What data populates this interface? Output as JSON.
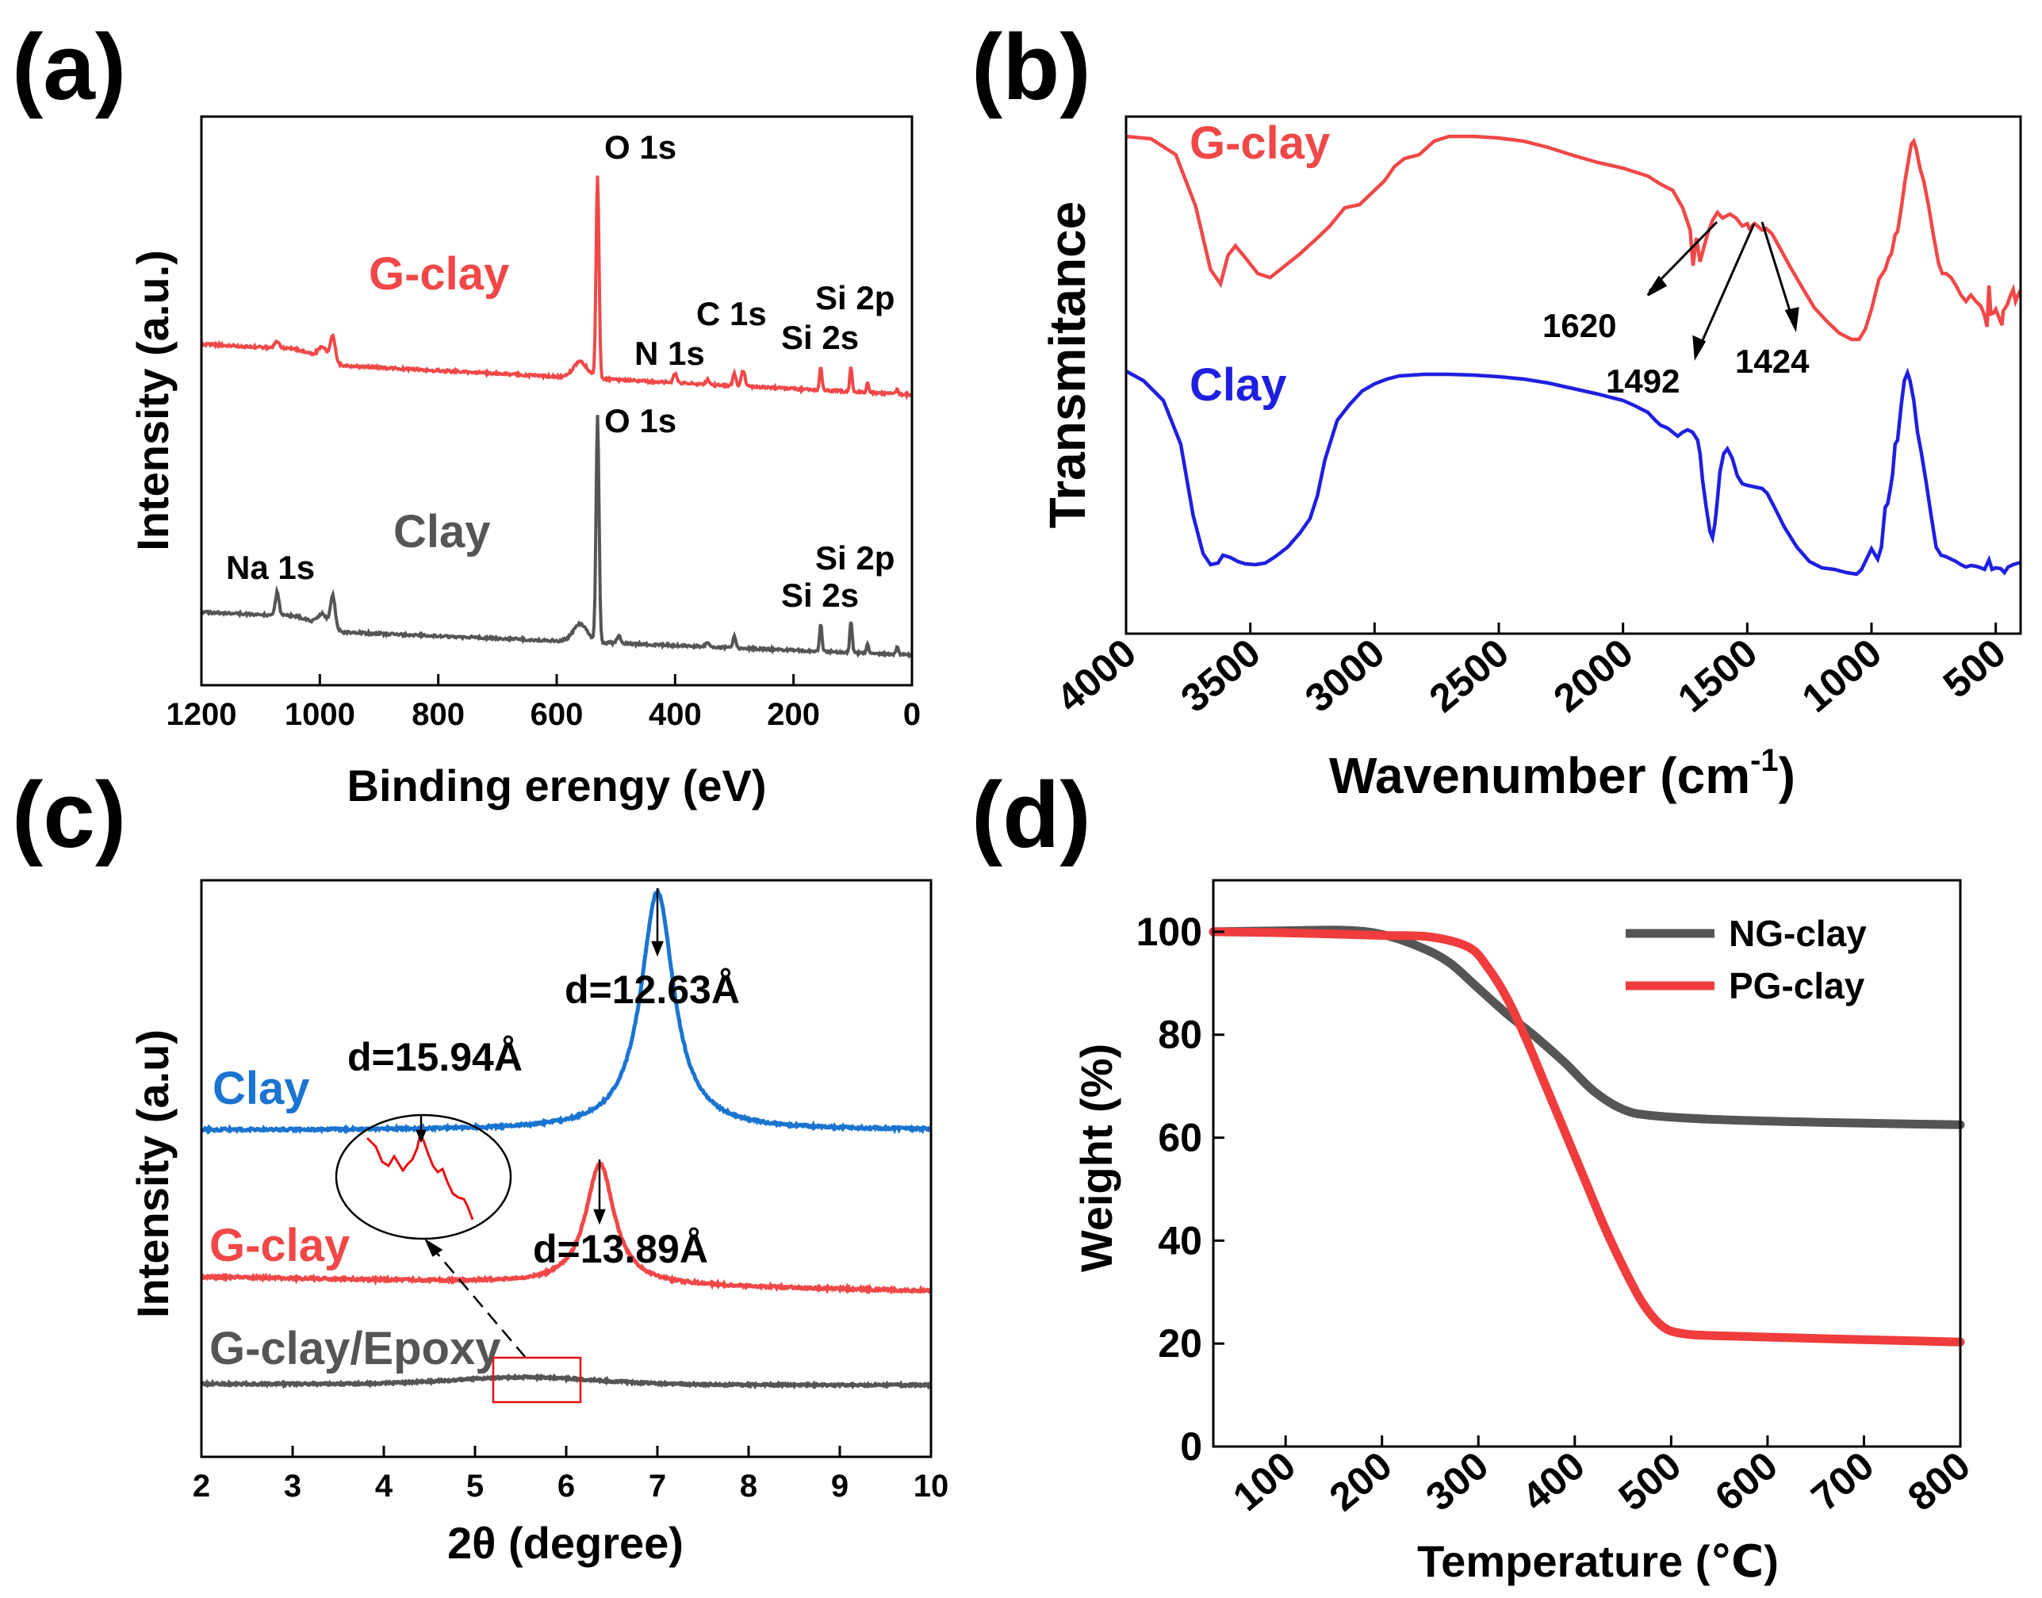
{
  "figure": {
    "label_a": "(a)",
    "label_b": "(b)",
    "label_c": "(c)",
    "label_d": "(d)"
  },
  "chart_data": [
    {
      "id": "a",
      "type": "line",
      "title": "",
      "xlabel": "Binding erengy (eV)",
      "ylabel": "Intensity (a.u.)",
      "xlim": [
        1200,
        0
      ],
      "xreversed": true,
      "xticks": [
        1200,
        1000,
        800,
        600,
        400,
        200,
        0
      ],
      "yunits": "arbitrary (stacked)",
      "series": [
        {
          "name": "G-clay",
          "color": "#f04848",
          "label": "G-clay",
          "peaks": [
            {
              "x": 1072,
              "label": ""
            },
            {
              "x": 978,
              "label": ""
            },
            {
              "x": 531,
              "label": "O 1s"
            },
            {
              "x": 400,
              "label": "N 1s"
            },
            {
              "x": 285,
              "label": "C 1s"
            },
            {
              "x": 154,
              "label": "Si 2s"
            },
            {
              "x": 103,
              "label": "Si 2p"
            }
          ],
          "annotations": [
            "O 1s",
            "N 1s",
            "C 1s",
            "Si 2s",
            "Si 2p"
          ]
        },
        {
          "name": "Clay",
          "color": "#555555",
          "label": "Clay",
          "peaks": [
            {
              "x": 1072,
              "label": "Na 1s"
            },
            {
              "x": 978,
              "label": ""
            },
            {
              "x": 531,
              "label": "O 1s"
            },
            {
              "x": 154,
              "label": "Si 2s"
            },
            {
              "x": 103,
              "label": "Si 2p"
            }
          ],
          "annotations": [
            "Na 1s",
            "O 1s",
            "Si 2s",
            "Si 2p"
          ]
        }
      ]
    },
    {
      "id": "b",
      "type": "line",
      "title": "",
      "xlabel": "Wavenumber (cm",
      "xlabel_sup": "-1",
      "xlabel_end": ")",
      "ylabel": "Transmitance",
      "xlim": [
        4000,
        400
      ],
      "xreversed": true,
      "xticks": [
        4000,
        3500,
        3000,
        2500,
        2000,
        1500,
        1000,
        500
      ],
      "series": [
        {
          "name": "G-clay",
          "color": "#f04848",
          "label": "G-clay",
          "bands": [
            3620,
            3450,
            1720,
            1620,
            1492,
            1424,
            1035,
            915,
            800,
            525,
            470
          ]
        },
        {
          "name": "Clay",
          "color": "#1f1fe0",
          "label": "Clay",
          "bands": [
            3620,
            3450,
            1640,
            1035,
            915,
            525,
            470
          ]
        }
      ],
      "annotations": [
        "1620",
        "1492",
        "1424"
      ]
    },
    {
      "id": "c",
      "type": "line",
      "title": "",
      "xlabel": "2θ (degree)",
      "ylabel": "Intensity (a.u)",
      "xlim": [
        2,
        10
      ],
      "xticks": [
        2,
        3,
        4,
        5,
        6,
        7,
        8,
        9,
        10
      ],
      "series": [
        {
          "name": "Clay",
          "color": "#1a74d0",
          "label": "Clay",
          "peak_2theta": 7.0,
          "d_spacing": "d=12.63Å"
        },
        {
          "name": "G-clay",
          "color": "#f04848",
          "label": "G-clay",
          "peak_2theta": 6.37,
          "d_spacing": "d=13.89Å"
        },
        {
          "name": "G-clay/Epoxy",
          "color": "#555555",
          "label": "G-clay/Epoxy",
          "peak_2theta": 5.55,
          "d_spacing": "d=15.94Å"
        }
      ],
      "annotations": [
        "d=12.63Å",
        "d=13.89Å",
        "d=15.94Å"
      ]
    },
    {
      "id": "d",
      "type": "line",
      "title": "",
      "xlabel": "Temperature (℃)",
      "ylabel": "Weight (%)",
      "xlim": [
        25,
        800
      ],
      "ylim": [
        0,
        110
      ],
      "xticks": [
        100,
        200,
        300,
        400,
        500,
        600,
        700,
        800
      ],
      "yticks": [
        0,
        20,
        40,
        60,
        80,
        100
      ],
      "legend_position": "top-right",
      "series": [
        {
          "name": "NG-clay",
          "color": "#555555",
          "x": [
            25,
            100,
            160,
            200,
            240,
            270,
            300,
            330,
            360,
            390,
            420,
            450,
            480,
            550,
            650,
            800
          ],
          "y": [
            100,
            100.2,
            100.3,
            99.5,
            97,
            94,
            89,
            84,
            79.5,
            74.5,
            69,
            65.5,
            64.3,
            63.5,
            63,
            62.5
          ]
        },
        {
          "name": "PG-clay",
          "color": "#f03c3c",
          "x": [
            25,
            100,
            200,
            250,
            290,
            310,
            330,
            350,
            370,
            390,
            410,
            430,
            450,
            470,
            490,
            510,
            550,
            650,
            800
          ],
          "y": [
            100,
            99.8,
            99.3,
            99,
            97,
            93,
            87,
            79,
            70,
            61,
            52,
            43,
            35,
            28,
            23.5,
            22,
            21.5,
            21,
            20.3
          ]
        }
      ]
    }
  ]
}
